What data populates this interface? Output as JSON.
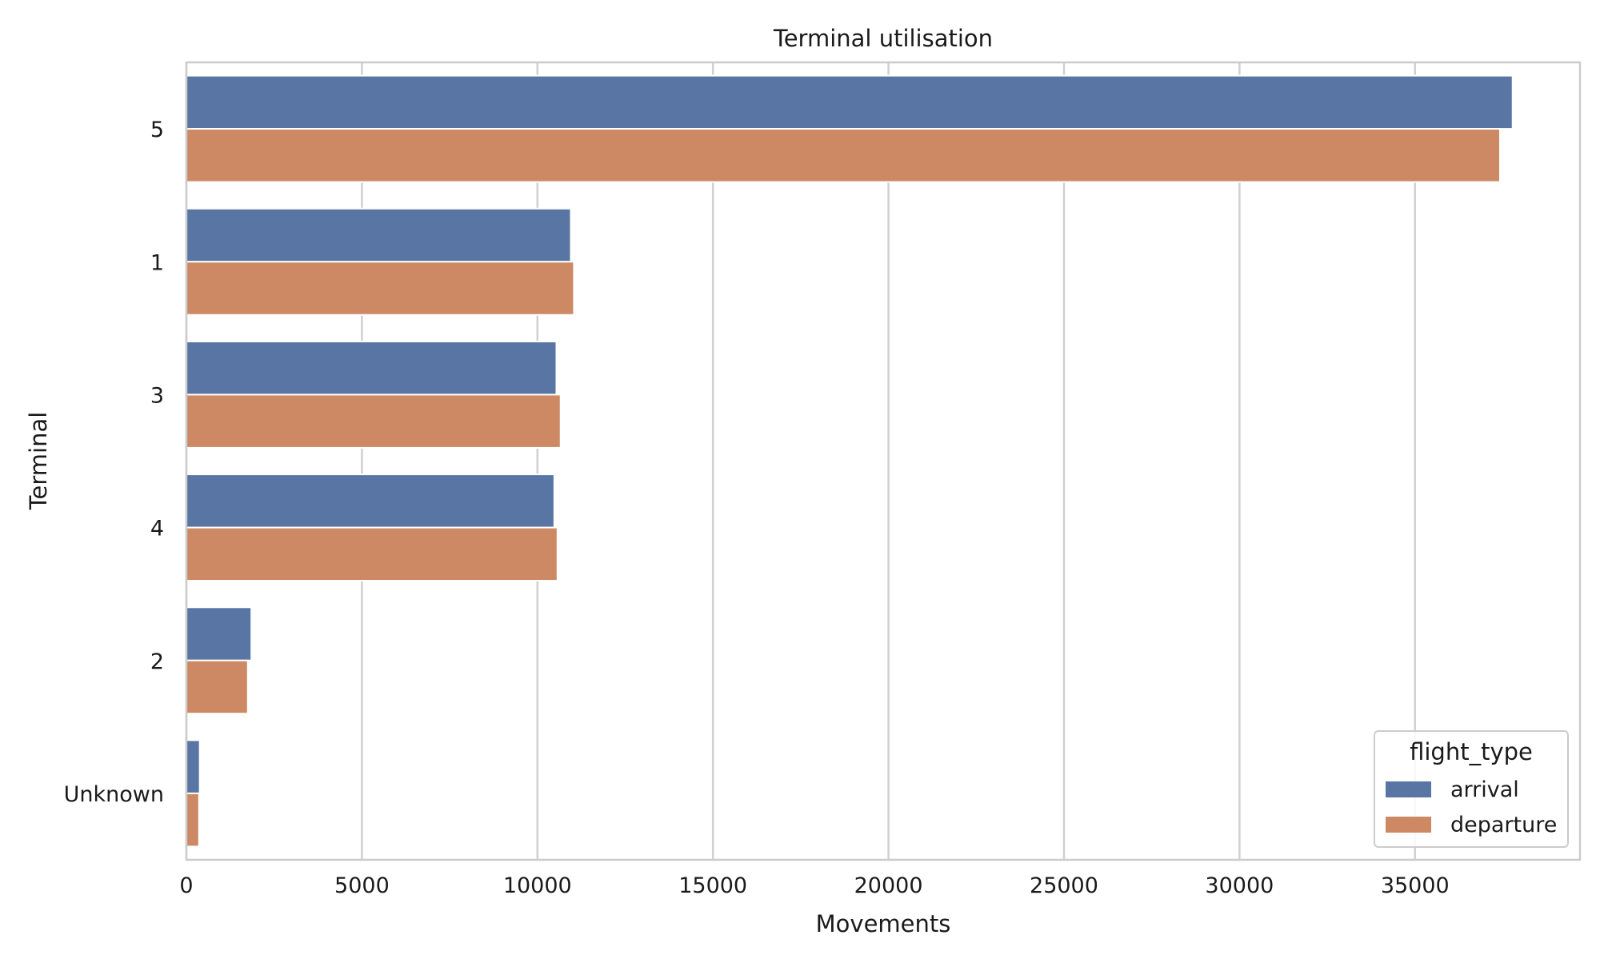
{
  "chart_data": {
    "type": "bar",
    "orientation": "horizontal",
    "title": "Terminal utilisation",
    "xlabel": "Movements",
    "ylabel": "Terminal",
    "categories": [
      "5",
      "1",
      "3",
      "4",
      "2",
      "Unknown"
    ],
    "series": [
      {
        "name": "arrival",
        "color": "#5875a4",
        "values": [
          37780,
          10950,
          10540,
          10480,
          1850,
          380
        ]
      },
      {
        "name": "departure",
        "color": "#cc8963",
        "values": [
          37420,
          11040,
          10660,
          10570,
          1750,
          360
        ]
      }
    ],
    "xlim": [
      0,
      39700
    ],
    "xticks": [
      0,
      5000,
      10000,
      15000,
      20000,
      25000,
      30000,
      35000
    ],
    "xtick_labels": [
      "0",
      "5000",
      "10000",
      "15000",
      "20000",
      "25000",
      "30000",
      "35000"
    ],
    "grid": "x",
    "legend": {
      "title": "flight_type",
      "placement": "lower-right",
      "entries": [
        "arrival",
        "departure"
      ]
    }
  }
}
